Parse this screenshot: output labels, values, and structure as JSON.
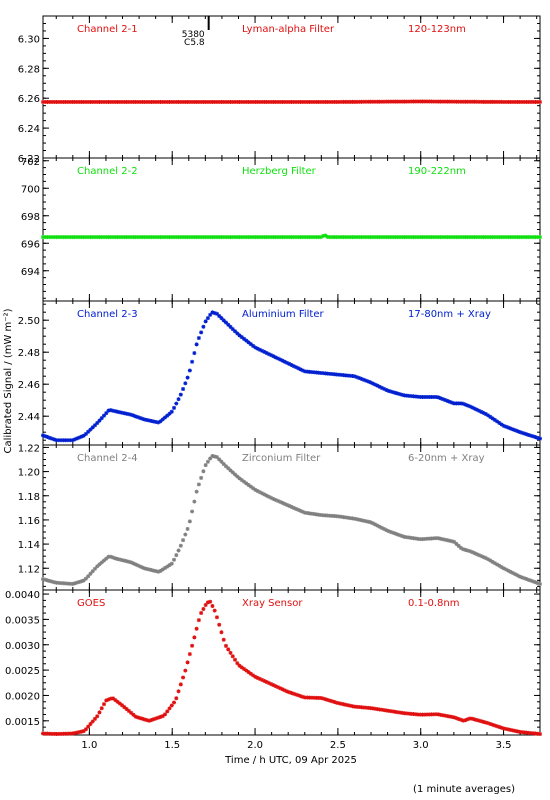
{
  "chart_data": {
    "type": "scatter",
    "marker": "asterisk",
    "xlabel": "Time / h UTC, 09 Apr 2025",
    "ylabel": "Calibrated Signal / (mW m⁻²)",
    "footnote": "(1 minute averages)",
    "xlim": [
      0.72,
      3.72
    ],
    "xticks": [
      "1.0",
      "1.5",
      "2.0",
      "2.5",
      "3.0",
      "3.5"
    ],
    "xtick_values": [
      1.0,
      1.5,
      2.0,
      2.5,
      3.0,
      3.5
    ],
    "grid": false,
    "panels": [
      {
        "name": "Channel 2-1",
        "filter": "Lyman-alpha Filter",
        "band": "120-123nm",
        "color": "#e01010",
        "ylim": [
          6.22,
          6.315
        ],
        "yticks": [
          "6.22",
          "6.24",
          "6.26",
          "6.28",
          "6.30"
        ],
        "ytick_values": [
          6.22,
          6.24,
          6.26,
          6.28,
          6.3
        ],
        "marker_annotation": {
          "x": 1.72,
          "lines": [
            "5380",
            "C5.8"
          ]
        },
        "x": [
          0.72,
          1.0,
          1.5,
          2.0,
          2.5,
          3.0,
          3.5,
          3.72
        ],
        "y": [
          6.2575,
          6.2575,
          6.2575,
          6.2575,
          6.2575,
          6.2578,
          6.2575,
          6.2575
        ]
      },
      {
        "name": "Channel 2-2",
        "filter": "Herzberg Filter",
        "band": "190-222nm",
        "color": "#10e010",
        "ylim": [
          691.8,
          702.2
        ],
        "yticks": [
          "694",
          "696",
          "698",
          "700",
          "702"
        ],
        "ytick_values": [
          694,
          696,
          698,
          700,
          702
        ],
        "x": [
          0.72,
          1.0,
          1.5,
          2.0,
          2.4,
          2.42,
          2.44,
          2.5,
          3.0,
          3.5,
          3.72
        ],
        "y": [
          696.45,
          696.45,
          696.45,
          696.45,
          696.45,
          696.6,
          696.45,
          696.45,
          696.45,
          696.45,
          696.45
        ]
      },
      {
        "name": "Channel 2-3",
        "filter": "Aluminium Filter",
        "band": "17-80nm + Xray",
        "color": "#0020d0",
        "ylim": [
          2.422,
          2.512
        ],
        "yticks": [
          "2.44",
          "2.46",
          "2.48",
          "2.50"
        ],
        "ytick_values": [
          2.44,
          2.46,
          2.48,
          2.5
        ],
        "x": [
          0.72,
          0.8,
          0.9,
          0.97,
          1.05,
          1.12,
          1.16,
          1.25,
          1.33,
          1.42,
          1.5,
          1.55,
          1.6,
          1.65,
          1.7,
          1.74,
          1.77,
          1.82,
          1.9,
          2.0,
          2.1,
          2.2,
          2.3,
          2.4,
          2.5,
          2.6,
          2.7,
          2.8,
          2.9,
          3.0,
          3.1,
          3.2,
          3.25,
          3.3,
          3.4,
          3.5,
          3.6,
          3.72
        ],
        "y": [
          2.428,
          2.425,
          2.425,
          2.428,
          2.436,
          2.444,
          2.443,
          2.441,
          2.438,
          2.436,
          2.443,
          2.453,
          2.466,
          2.486,
          2.499,
          2.505,
          2.504,
          2.499,
          2.491,
          2.483,
          2.478,
          2.473,
          2.468,
          2.467,
          2.466,
          2.465,
          2.461,
          2.456,
          2.453,
          2.452,
          2.452,
          2.448,
          2.448,
          2.446,
          2.441,
          2.434,
          2.43,
          2.426
        ]
      },
      {
        "name": "Channel 2-4",
        "filter": "Zirconium Filter",
        "band": "6-20nm + Xray",
        "color": "#808080",
        "ylim": [
          1.102,
          1.222
        ],
        "yticks": [
          "1.12",
          "1.14",
          "1.16",
          "1.18",
          "1.20",
          "1.22"
        ],
        "ytick_values": [
          1.12,
          1.14,
          1.16,
          1.18,
          1.2,
          1.22
        ],
        "x": [
          0.72,
          0.8,
          0.9,
          0.97,
          1.05,
          1.12,
          1.16,
          1.25,
          1.33,
          1.42,
          1.5,
          1.55,
          1.6,
          1.65,
          1.7,
          1.74,
          1.77,
          1.82,
          1.9,
          2.0,
          2.1,
          2.2,
          2.3,
          2.4,
          2.5,
          2.6,
          2.7,
          2.8,
          2.9,
          3.0,
          3.1,
          3.2,
          3.25,
          3.3,
          3.4,
          3.5,
          3.6,
          3.72
        ],
        "y": [
          1.111,
          1.108,
          1.107,
          1.11,
          1.122,
          1.13,
          1.128,
          1.125,
          1.12,
          1.117,
          1.124,
          1.138,
          1.155,
          1.185,
          1.205,
          1.213,
          1.212,
          1.205,
          1.195,
          1.185,
          1.178,
          1.172,
          1.166,
          1.164,
          1.163,
          1.161,
          1.158,
          1.151,
          1.146,
          1.144,
          1.145,
          1.142,
          1.136,
          1.134,
          1.128,
          1.12,
          1.113,
          1.107
        ]
      },
      {
        "name": "GOES",
        "filter": "Xray Sensor",
        "band": "0.1-0.8nm",
        "color": "#e01010",
        "ylim": [
          0.00122,
          0.00408
        ],
        "yticks": [
          "0.0015",
          "0.0020",
          "0.0025",
          "0.0030",
          "0.0035",
          "0.0040"
        ],
        "ytick_values": [
          0.0015,
          0.002,
          0.0025,
          0.003,
          0.0035,
          0.004
        ],
        "x": [
          0.72,
          0.8,
          0.9,
          0.97,
          1.05,
          1.1,
          1.14,
          1.2,
          1.28,
          1.36,
          1.45,
          1.52,
          1.58,
          1.63,
          1.67,
          1.71,
          1.73,
          1.76,
          1.82,
          1.9,
          2.0,
          2.1,
          2.2,
          2.3,
          2.4,
          2.5,
          2.6,
          2.7,
          2.8,
          2.9,
          3.0,
          3.1,
          3.2,
          3.26,
          3.3,
          3.4,
          3.5,
          3.6,
          3.72
        ],
        "y": [
          0.00125,
          0.00124,
          0.00125,
          0.0013,
          0.0016,
          0.0019,
          0.00195,
          0.0018,
          0.00158,
          0.0015,
          0.0016,
          0.0019,
          0.0025,
          0.0031,
          0.0036,
          0.00383,
          0.00385,
          0.00365,
          0.003,
          0.0026,
          0.00237,
          0.00222,
          0.00207,
          0.00196,
          0.00195,
          0.00185,
          0.00178,
          0.00175,
          0.0017,
          0.00165,
          0.00162,
          0.00163,
          0.00157,
          0.0015,
          0.00155,
          0.00146,
          0.00135,
          0.00128,
          0.00124
        ]
      }
    ]
  }
}
